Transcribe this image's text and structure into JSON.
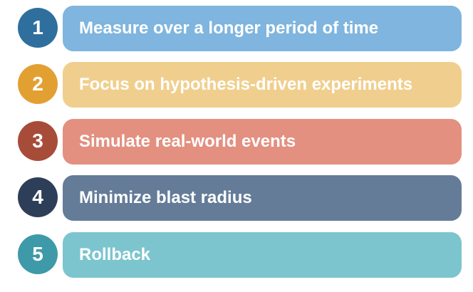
{
  "steps": [
    {
      "number": "1",
      "label": "Measure over a longer period of time",
      "circle_color": "#2f6f9e",
      "pill_color": "#7fb5de"
    },
    {
      "number": "2",
      "label": "Focus on hypothesis-driven experiments",
      "circle_color": "#e3a032",
      "pill_color": "#f0cf8e"
    },
    {
      "number": "3",
      "label": "Simulate real-world events",
      "circle_color": "#a84c3a",
      "pill_color": "#e39080"
    },
    {
      "number": "4",
      "label": "Minimize blast radius",
      "circle_color": "#2d3f58",
      "pill_color": "#647c98"
    },
    {
      "number": "5",
      "label": "Rollback",
      "circle_color": "#3e9aa8",
      "pill_color": "#7cc5ce"
    }
  ]
}
